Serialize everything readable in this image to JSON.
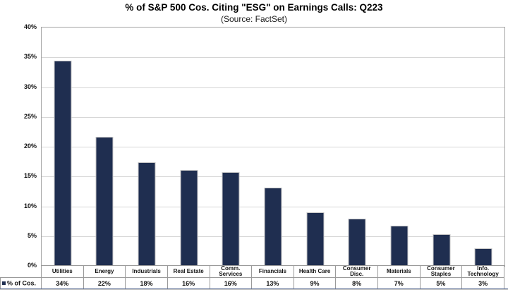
{
  "header": {
    "title": "% of S&P 500 Cos. Citing \"ESG\" on Earnings Calls: Q223",
    "subtitle": "(Source: FactSet)"
  },
  "legend": {
    "label": "% of Cos.",
    "swatch_color": "#1f2e50",
    "position": "bottom-left"
  },
  "colors": {
    "bar_fill": "#1f2e50",
    "bar_border": "#c7c7c7",
    "gridline": "#d6d6d6",
    "plot_border": "#a3a3a3",
    "table_border": "#9a9a9a",
    "bottom_rule": "#5d6f96"
  },
  "chart_data": {
    "type": "bar",
    "title": "% of S&P 500 Cos. Citing \"ESG\" on Earnings Calls: Q223",
    "subtitle": "(Source: FactSet)",
    "categories": [
      "Utilities",
      "Energy",
      "Industrials",
      "Real Estate",
      "Comm. Services",
      "Financials",
      "Health Care",
      "Consumer Disc.",
      "Materials",
      "Consumer Staples",
      "Info. Technology"
    ],
    "values": [
      34,
      22,
      18,
      16,
      16,
      13,
      9,
      8,
      7,
      5,
      3
    ],
    "value_labels": [
      "34%",
      "22%",
      "18%",
      "16%",
      "16%",
      "13%",
      "9%",
      "8%",
      "7%",
      "5%",
      "3%"
    ],
    "bar_heights": [
      34.4,
      21.7,
      17.4,
      16.1,
      15.8,
      13.1,
      9.0,
      7.9,
      6.8,
      5.3,
      3.0
    ],
    "series_name": "% of Cos.",
    "xlabel": "",
    "ylabel": "",
    "ylim": [
      0,
      40
    ],
    "yticks": [
      0,
      5,
      10,
      15,
      20,
      25,
      30,
      35,
      40
    ],
    "ytick_labels": [
      "0%",
      "5%",
      "10%",
      "15%",
      "20%",
      "25%",
      "30%",
      "35%",
      "40%"
    ],
    "grid": "horizontal",
    "legend_position": "bottom-left",
    "data_table_shown": true
  }
}
